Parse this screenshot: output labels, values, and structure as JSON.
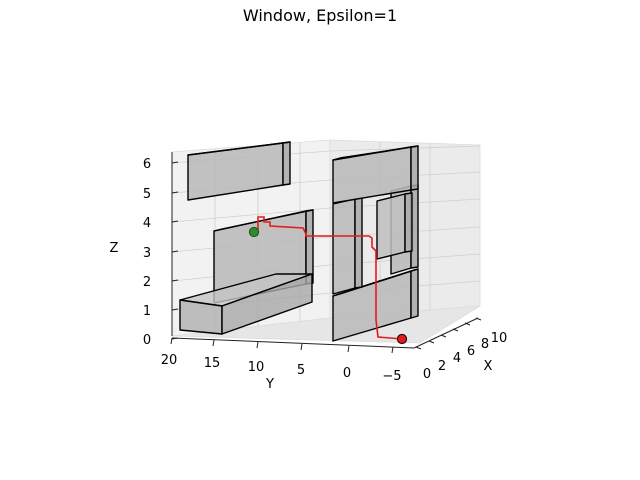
{
  "chart_data": {
    "type": "3d-path",
    "title": "Window, Epsilon=1",
    "xlabel": "X",
    "ylabel": "Y",
    "zlabel": "Z",
    "xticks": [
      "0",
      "2",
      "4",
      "6",
      "8",
      "10"
    ],
    "yticks": [
      "20",
      "15",
      "10",
      "5",
      "0",
      "−5"
    ],
    "zticks": [
      "0",
      "1",
      "2",
      "3",
      "4",
      "5",
      "6"
    ],
    "xlim": [
      0,
      10
    ],
    "ylim": [
      -5,
      20
    ],
    "zlim": [
      0,
      6
    ],
    "grid": true,
    "obstacle_color": "#b0b0b0",
    "obstacle_edge_color": "#000000",
    "path_color": "#e41a1c",
    "start_color": "#2e8b2e",
    "goal_color": "#e41a1c",
    "obstacles": [
      {
        "name": "low-box",
        "x": [
          0,
          1
        ],
        "y": [
          10,
          20
        ],
        "z": [
          0,
          1
        ]
      },
      {
        "name": "mid-wall",
        "x": [
          0,
          1
        ],
        "y": [
          10,
          15
        ],
        "z": [
          1,
          4
        ]
      },
      {
        "name": "top-slab",
        "x": [
          0,
          1
        ],
        "y": [
          12,
          20
        ],
        "z": [
          5.2,
          6.4
        ]
      },
      {
        "name": "window-wall-lower",
        "x": [
          0,
          1
        ],
        "y": [
          -5,
          -4
        ],
        "z": [
          0,
          1.5
        ]
      },
      {
        "name": "window-wall-upper",
        "x": [
          0,
          1
        ],
        "y": [
          -5,
          -4
        ],
        "z": [
          4.5,
          6
        ]
      },
      {
        "name": "window-frame-left",
        "x": [
          0,
          1
        ],
        "y": [
          -5,
          -4
        ],
        "z": [
          1.5,
          4.5
        ]
      },
      {
        "name": "window-frame-right",
        "x": [
          0,
          1
        ],
        "y": [
          -5,
          -4
        ],
        "z": [
          1.5,
          4.5
        ]
      }
    ],
    "start": {
      "x": 0,
      "y": 11,
      "z": 3.6
    },
    "goal": {
      "x": 10,
      "y": -5,
      "z": 0
    }
  }
}
